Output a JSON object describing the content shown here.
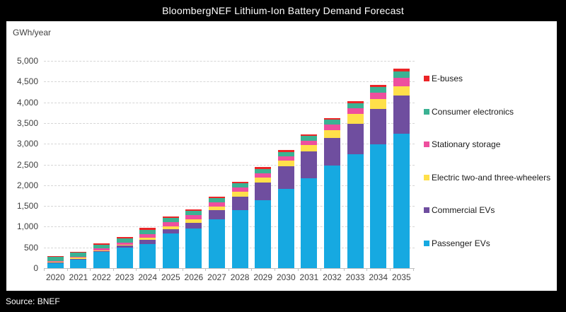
{
  "window": {
    "title": "BloombergNEF Lithium-Ion Battery Demand Forecast",
    "source": "Source: BNEF"
  },
  "chart_data": {
    "type": "bar",
    "stacked": true,
    "title": "BloombergNEF Lithium-Ion Battery Demand Forecast",
    "xlabel": "",
    "ylabel": "GWh/year",
    "ylim": [
      0,
      5000
    ],
    "ytick_step": 500,
    "yticks": [
      "0",
      "500",
      "1,000",
      "1,500",
      "2,000",
      "2,500",
      "3,000",
      "3,500",
      "4,000",
      "4,500",
      "5,000"
    ],
    "grid": "horizontal-dashed",
    "legend_position": "right",
    "legend_order_top_to_bottom": [
      "E-buses",
      "Consumer electronics",
      "Stationary storage",
      "Electric two-and three-wheelers",
      "Commercial EVs",
      "Passenger EVs"
    ],
    "categories": [
      "2020",
      "2021",
      "2022",
      "2023",
      "2024",
      "2025",
      "2026",
      "2027",
      "2028",
      "2029",
      "2030",
      "2031",
      "2032",
      "2033",
      "2034",
      "2035"
    ],
    "series": [
      {
        "name": "Passenger EVs",
        "color": "#16A9E1",
        "values": [
          135,
          215,
          390,
          500,
          580,
          830,
          960,
          1170,
          1400,
          1640,
          1920,
          2165,
          2480,
          2740,
          2990,
          3250
        ]
      },
      {
        "name": "Commercial EVs",
        "color": "#6F4E9F",
        "values": [
          10,
          15,
          20,
          40,
          95,
          105,
          125,
          230,
          330,
          430,
          540,
          655,
          660,
          745,
          850,
          910
        ]
      },
      {
        "name": "Electric two-and three-wheelers",
        "color": "#FFE04A",
        "values": [
          15,
          20,
          25,
          30,
          60,
          75,
          90,
          85,
          110,
          115,
          130,
          145,
          185,
          230,
          240,
          230
        ]
      },
      {
        "name": "Stationary storage",
        "color": "#EE4F9E",
        "values": [
          15,
          25,
          35,
          50,
          85,
          95,
          110,
          100,
          105,
          105,
          105,
          115,
          140,
          145,
          160,
          200
        ]
      },
      {
        "name": "Consumer electronics",
        "color": "#3BB293",
        "values": [
          90,
          95,
          95,
          100,
          110,
          105,
          105,
          100,
          105,
          105,
          110,
          110,
          115,
          120,
          130,
          160
        ]
      },
      {
        "name": "E-buses",
        "color": "#EB2427",
        "values": [
          22,
          30,
          30,
          30,
          35,
          35,
          35,
          40,
          40,
          40,
          40,
          40,
          40,
          45,
          50,
          55
        ]
      }
    ],
    "totals_approx": [
      287,
      400,
      595,
      750,
      965,
      1245,
      1425,
      1725,
      2090,
      2435,
      2845,
      3230,
      3620,
      4025,
      4420,
      4805
    ]
  }
}
